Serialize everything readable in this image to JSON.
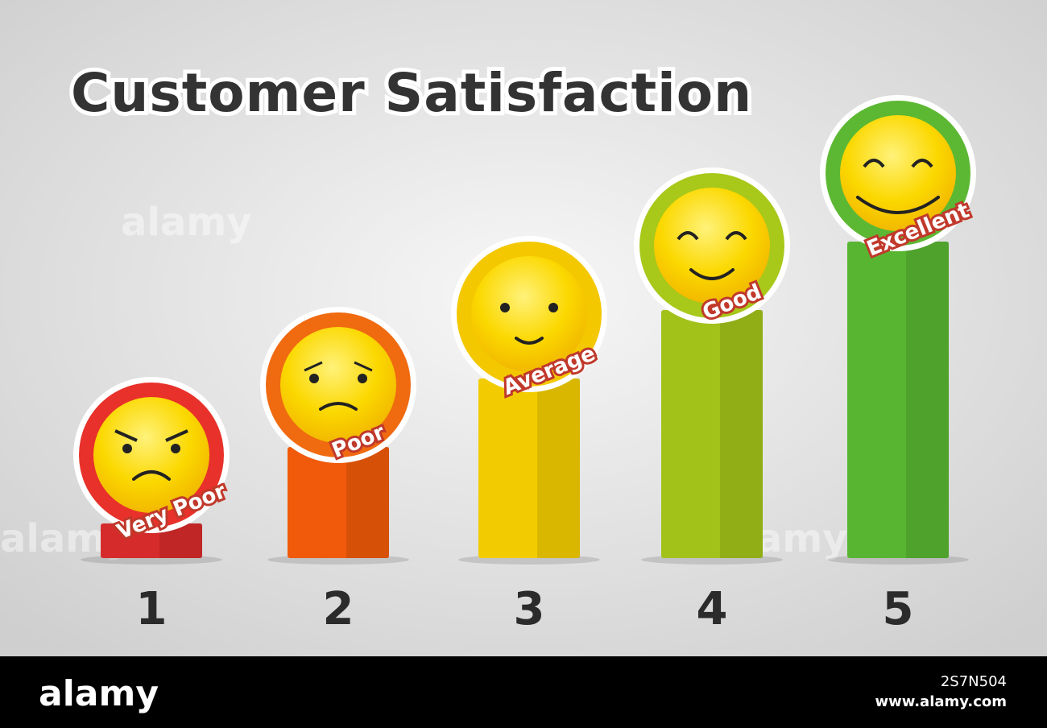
{
  "header": {
    "title": "Customer Satisfaction"
  },
  "levels": [
    {
      "number": "1",
      "label": "Very Poor"
    },
    {
      "number": "2",
      "label": "Poor"
    },
    {
      "number": "3",
      "label": "Average"
    },
    {
      "number": "4",
      "label": "Good"
    },
    {
      "number": "5",
      "label": "Excellent"
    }
  ],
  "footer": {
    "brand": "alamy",
    "image_id": "2S7N504",
    "url": "www.alamy.com"
  }
}
